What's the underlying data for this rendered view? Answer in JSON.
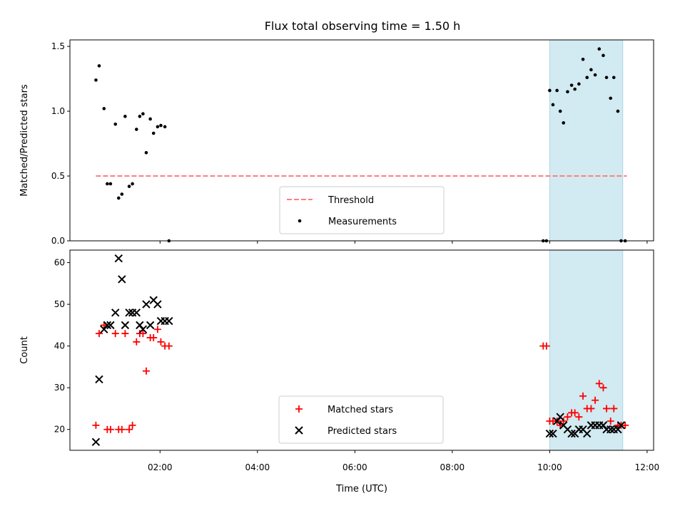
{
  "chart_data": [
    {
      "type": "scatter",
      "title": "Flux total observing time = 1.50 h",
      "xlabel": "",
      "ylabel": "Matched/Predicted stars",
      "x_unit": "hours UTC",
      "xlim": [
        "00:09",
        "12:08"
      ],
      "ylim": [
        0,
        1.55
      ],
      "yticks": [
        "0.0",
        "0.5",
        "1.0",
        "1.5"
      ],
      "shaded_span": [
        "10:00",
        "11:30"
      ],
      "shade_color": "#add8e6",
      "legend_position": "lower center",
      "series": [
        {
          "name": "Threshold",
          "kind": "dashed-line",
          "color": "#ff7f7f",
          "x": [
            "00:41",
            "11:35"
          ],
          "y": [
            0.5,
            0.5
          ]
        },
        {
          "name": "Measurements",
          "kind": "dots",
          "color": "#000000",
          "x": [
            "00:41",
            "00:45",
            "00:51",
            "00:55",
            "00:59",
            "01:05",
            "01:09",
            "01:13",
            "01:17",
            "01:22",
            "01:26",
            "01:31",
            "01:35",
            "01:39",
            "01:43",
            "01:48",
            "01:52",
            "01:57",
            "02:01",
            "02:06",
            "02:11",
            "09:52",
            "09:56",
            "10:00",
            "10:04",
            "10:09",
            "10:13",
            "10:17",
            "10:22",
            "10:27",
            "10:31",
            "10:36",
            "10:41",
            "10:46",
            "10:51",
            "10:56",
            "11:01",
            "11:06",
            "11:10",
            "11:15",
            "11:19",
            "11:24",
            "11:28",
            "11:33"
          ],
          "y": [
            1.24,
            1.35,
            1.02,
            0.44,
            0.44,
            0.9,
            0.33,
            0.36,
            0.96,
            0.42,
            0.44,
            0.86,
            0.96,
            0.98,
            0.68,
            0.94,
            0.83,
            0.88,
            0.89,
            0.88,
            0.0,
            0.0,
            0.0,
            1.16,
            1.05,
            1.16,
            1.0,
            0.91,
            1.15,
            1.2,
            1.17,
            1.21,
            1.4,
            1.26,
            1.32,
            1.28,
            1.48,
            1.43,
            1.26,
            1.1,
            1.26,
            1.0,
            0.0,
            0.0
          ]
        }
      ]
    },
    {
      "type": "scatter",
      "title": "",
      "xlabel": "Time (UTC)",
      "ylabel": "Count",
      "x_unit": "hours UTC",
      "xlim": [
        "00:09",
        "12:08"
      ],
      "ylim": [
        15,
        63
      ],
      "xticks": [
        "02:00",
        "04:00",
        "06:00",
        "08:00",
        "10:00",
        "12:00"
      ],
      "yticks": [
        "20",
        "30",
        "40",
        "50",
        "60"
      ],
      "shaded_span": [
        "10:00",
        "11:30"
      ],
      "shade_color": "#add8e6",
      "legend_position": "lower center",
      "series": [
        {
          "name": "Matched stars",
          "kind": "plus",
          "color": "#ff0000",
          "x": [
            "00:41",
            "00:45",
            "00:51",
            "00:55",
            "00:59",
            "01:05",
            "01:09",
            "01:13",
            "01:17",
            "01:22",
            "01:26",
            "01:31",
            "01:35",
            "01:39",
            "01:43",
            "01:48",
            "01:52",
            "01:57",
            "02:01",
            "02:06",
            "02:11",
            "09:52",
            "09:56",
            "10:00",
            "10:04",
            "10:09",
            "10:13",
            "10:17",
            "10:22",
            "10:27",
            "10:31",
            "10:36",
            "10:41",
            "10:46",
            "10:51",
            "10:56",
            "11:01",
            "11:06",
            "11:10",
            "11:15",
            "11:19",
            "11:24",
            "11:28",
            "11:33"
          ],
          "y": [
            21,
            43,
            45,
            20,
            20,
            43,
            20,
            20,
            43,
            20,
            21,
            41,
            43,
            43,
            34,
            42,
            42,
            44,
            41,
            40,
            40,
            40,
            40,
            22,
            22,
            22,
            21,
            22,
            23,
            24,
            24,
            23,
            28,
            25,
            25,
            27,
            31,
            30,
            25,
            22,
            25,
            21,
            21,
            21
          ]
        },
        {
          "name": "Predicted stars",
          "kind": "x",
          "color": "#000000",
          "x": [
            "00:41",
            "00:45",
            "00:51",
            "00:55",
            "00:59",
            "01:05",
            "01:09",
            "01:13",
            "01:17",
            "01:22",
            "01:26",
            "01:31",
            "01:35",
            "01:39",
            "01:43",
            "01:48",
            "01:52",
            "01:57",
            "02:01",
            "02:06",
            "02:11",
            "10:00",
            "10:04",
            "10:09",
            "10:13",
            "10:17",
            "10:22",
            "10:27",
            "10:31",
            "10:36",
            "10:41",
            "10:46",
            "10:51",
            "10:56",
            "11:01",
            "11:06",
            "11:10",
            "11:15",
            "11:19",
            "11:24",
            "11:28"
          ],
          "y": [
            17,
            32,
            44,
            45,
            45,
            48,
            61,
            56,
            45,
            48,
            48,
            48,
            45,
            44,
            50,
            45,
            51,
            50,
            46,
            46,
            46,
            19,
            19,
            22,
            23,
            21,
            20,
            19,
            19,
            20,
            20,
            19,
            21,
            21,
            21,
            21,
            20,
            20,
            20,
            20,
            21
          ]
        }
      ]
    }
  ]
}
